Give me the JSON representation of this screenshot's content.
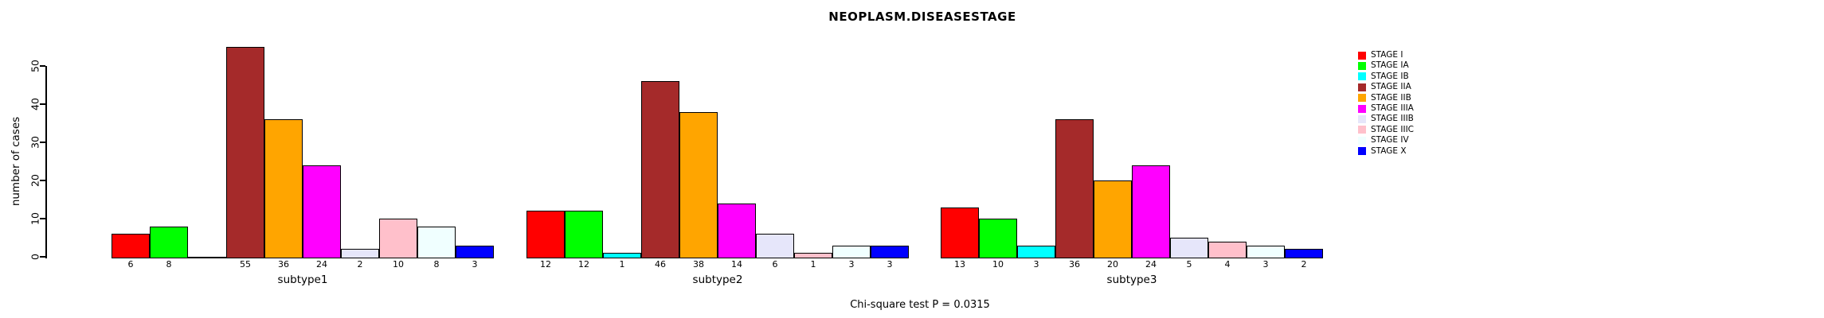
{
  "chart_data": {
    "type": "bar",
    "title": "NEOPLASM.DISEASESTAGE",
    "ylabel": "number of cases",
    "xlabel": "",
    "yticks": [
      0,
      10,
      20,
      30,
      40,
      50
    ],
    "ylim": [
      0,
      57
    ],
    "grid": false,
    "legend_position": "right",
    "annotation": "Chi-square test P = 0.0315",
    "categories": [
      "subtype1",
      "subtype2",
      "subtype3"
    ],
    "series": [
      {
        "name": "STAGE I",
        "color": "#FF0000",
        "values": [
          6,
          12,
          13
        ]
      },
      {
        "name": "STAGE IA",
        "color": "#00FF00",
        "values": [
          8,
          12,
          10
        ]
      },
      {
        "name": "STAGE IB",
        "color": "#00FFFF",
        "values": [
          0,
          1,
          3
        ]
      },
      {
        "name": "STAGE IIA",
        "color": "#A52A2A",
        "values": [
          55,
          46,
          36
        ]
      },
      {
        "name": "STAGE IIB",
        "color": "#FFA500",
        "values": [
          36,
          38,
          20
        ]
      },
      {
        "name": "STAGE IIIA",
        "color": "#FF00FF",
        "values": [
          24,
          14,
          24
        ]
      },
      {
        "name": "STAGE IIIB",
        "color": "#E6E6FA",
        "values": [
          2,
          6,
          5
        ]
      },
      {
        "name": "STAGE IIIC",
        "color": "#FFC0CB",
        "values": [
          10,
          1,
          4
        ]
      },
      {
        "name": "STAGE IV",
        "color": "#F0FFFF",
        "values": [
          8,
          3,
          3
        ]
      },
      {
        "name": "STAGE X",
        "color": "#0000FF",
        "values": [
          3,
          3,
          2
        ]
      }
    ],
    "bar_label_rule": "value shown under each bar; zero values show no label and render as a flat line",
    "axis_color": "#000000",
    "text_color": "#000000",
    "background_color": "#FFFFFF"
  }
}
